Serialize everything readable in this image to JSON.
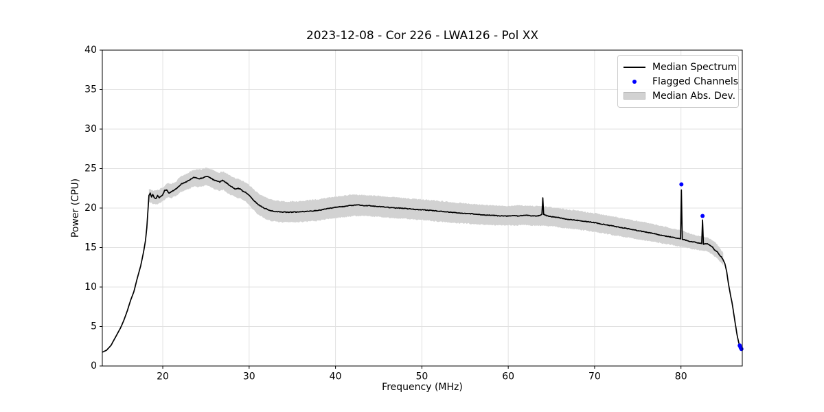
{
  "chart_data": {
    "type": "line",
    "title": "2023-12-08 - Cor 226 - LWA126 - Pol XX",
    "xlabel": "Frequency (MHz)",
    "ylabel": "Power (CPU)",
    "xlim": [
      13.0,
      87.1
    ],
    "ylim": [
      0,
      40
    ],
    "xticks": [
      20,
      30,
      40,
      50,
      60,
      70,
      80
    ],
    "yticks": [
      0,
      5,
      10,
      15,
      20,
      25,
      30,
      35,
      40
    ],
    "grid": true,
    "legend": {
      "position": "upper right",
      "entries": [
        {
          "label": "Median Spectrum",
          "type": "line",
          "color": "#000000"
        },
        {
          "label": "Flagged Channels",
          "type": "point",
          "color": "#0000ff"
        },
        {
          "label": "Median Abs. Dev.",
          "type": "band",
          "color": "#d2d2d2"
        }
      ]
    },
    "colors": {
      "line": "#000000",
      "flagged": "#0000ff",
      "band": "#d2d2d2",
      "grid": "#e1e1e1",
      "spine": "#000000"
    },
    "series": [
      {
        "name": "Median Spectrum",
        "points": [
          [
            13.0,
            1.75
          ],
          [
            13.5,
            2.0
          ],
          [
            14.0,
            2.6
          ],
          [
            14.3,
            3.2
          ],
          [
            14.7,
            4.0
          ],
          [
            15.1,
            4.8
          ],
          [
            15.5,
            5.8
          ],
          [
            15.9,
            7.0
          ],
          [
            16.3,
            8.4
          ],
          [
            16.65,
            9.4
          ],
          [
            17.0,
            10.9
          ],
          [
            17.45,
            12.7
          ],
          [
            17.8,
            14.6
          ],
          [
            18.0,
            15.9
          ],
          [
            18.15,
            17.5
          ],
          [
            18.25,
            19.1
          ],
          [
            18.4,
            21.6
          ],
          [
            18.55,
            21.9
          ],
          [
            18.7,
            21.4
          ],
          [
            18.85,
            21.7
          ],
          [
            19.0,
            21.3
          ],
          [
            19.2,
            21.2
          ],
          [
            19.4,
            21.6
          ],
          [
            19.6,
            21.3
          ],
          [
            19.8,
            21.5
          ],
          [
            20.0,
            21.7
          ],
          [
            20.2,
            22.2
          ],
          [
            20.45,
            22.3
          ],
          [
            20.7,
            21.9
          ],
          [
            20.9,
            22.0
          ],
          [
            21.2,
            22.2
          ],
          [
            21.5,
            22.4
          ],
          [
            21.8,
            22.7
          ],
          [
            22.1,
            23.0
          ],
          [
            22.4,
            23.2
          ],
          [
            22.7,
            23.3
          ],
          [
            23.0,
            23.5
          ],
          [
            23.3,
            23.7
          ],
          [
            23.6,
            23.9
          ],
          [
            23.9,
            23.8
          ],
          [
            24.2,
            23.7
          ],
          [
            24.5,
            23.8
          ],
          [
            24.8,
            23.9
          ],
          [
            25.1,
            24.0
          ],
          [
            25.4,
            23.9
          ],
          [
            25.7,
            23.7
          ],
          [
            26.0,
            23.5
          ],
          [
            26.3,
            23.4
          ],
          [
            26.6,
            23.3
          ],
          [
            26.9,
            23.5
          ],
          [
            27.2,
            23.3
          ],
          [
            27.5,
            23.1
          ],
          [
            27.8,
            22.8
          ],
          [
            28.1,
            22.6
          ],
          [
            28.4,
            22.4
          ],
          [
            28.7,
            22.5
          ],
          [
            29.0,
            22.4
          ],
          [
            29.3,
            22.1
          ],
          [
            29.6,
            22.0
          ],
          [
            29.9,
            21.7
          ],
          [
            30.2,
            21.4
          ],
          [
            30.5,
            21.0
          ],
          [
            30.8,
            20.7
          ],
          [
            31.1,
            20.4
          ],
          [
            31.4,
            20.2
          ],
          [
            31.7,
            20.0
          ],
          [
            32.0,
            19.9
          ],
          [
            32.4,
            19.7
          ],
          [
            32.8,
            19.6
          ],
          [
            33.2,
            19.55
          ],
          [
            33.6,
            19.5
          ],
          [
            34.0,
            19.5
          ],
          [
            34.5,
            19.45
          ],
          [
            35.0,
            19.5
          ],
          [
            35.5,
            19.5
          ],
          [
            36.0,
            19.55
          ],
          [
            36.5,
            19.55
          ],
          [
            37.0,
            19.6
          ],
          [
            37.5,
            19.65
          ],
          [
            38.0,
            19.7
          ],
          [
            38.5,
            19.8
          ],
          [
            39.0,
            19.9
          ],
          [
            39.5,
            20.0
          ],
          [
            40.0,
            20.1
          ],
          [
            40.5,
            20.15
          ],
          [
            41.0,
            20.2
          ],
          [
            41.5,
            20.3
          ],
          [
            42.0,
            20.35
          ],
          [
            42.5,
            20.4
          ],
          [
            43.0,
            20.35
          ],
          [
            43.5,
            20.3
          ],
          [
            44.0,
            20.3
          ],
          [
            44.5,
            20.25
          ],
          [
            45.0,
            20.2
          ],
          [
            45.5,
            20.15
          ],
          [
            46.0,
            20.1
          ],
          [
            46.5,
            20.05
          ],
          [
            47.0,
            20.0
          ],
          [
            47.5,
            20.0
          ],
          [
            48.0,
            19.95
          ],
          [
            48.5,
            19.9
          ],
          [
            49.0,
            19.85
          ],
          [
            49.5,
            19.8
          ],
          [
            50.0,
            19.8
          ],
          [
            50.5,
            19.75
          ],
          [
            51.0,
            19.7
          ],
          [
            51.5,
            19.65
          ],
          [
            52.0,
            19.6
          ],
          [
            52.5,
            19.55
          ],
          [
            53.0,
            19.5
          ],
          [
            53.5,
            19.45
          ],
          [
            54.0,
            19.4
          ],
          [
            54.5,
            19.35
          ],
          [
            55.0,
            19.3
          ],
          [
            55.5,
            19.3
          ],
          [
            56.0,
            19.25
          ],
          [
            56.5,
            19.2
          ],
          [
            57.0,
            19.15
          ],
          [
            57.5,
            19.1
          ],
          [
            58.0,
            19.1
          ],
          [
            58.5,
            19.05
          ],
          [
            59.0,
            19.0
          ],
          [
            59.5,
            19.0
          ],
          [
            60.0,
            19.0
          ],
          [
            60.5,
            19.05
          ],
          [
            61.0,
            19.0
          ],
          [
            61.5,
            19.05
          ],
          [
            62.0,
            19.1
          ],
          [
            62.5,
            19.05
          ],
          [
            63.0,
            19.0
          ],
          [
            63.5,
            19.0
          ],
          [
            63.9,
            19.2
          ],
          [
            64.0,
            21.3
          ],
          [
            64.1,
            19.2
          ],
          [
            64.5,
            19.0
          ],
          [
            65.0,
            18.9
          ],
          [
            65.5,
            18.85
          ],
          [
            66.0,
            18.75
          ],
          [
            66.5,
            18.65
          ],
          [
            67.0,
            18.55
          ],
          [
            67.5,
            18.5
          ],
          [
            68.0,
            18.45
          ],
          [
            68.5,
            18.35
          ],
          [
            69.0,
            18.3
          ],
          [
            69.5,
            18.25
          ],
          [
            70.0,
            18.15
          ],
          [
            70.5,
            18.05
          ],
          [
            71.0,
            17.95
          ],
          [
            71.5,
            17.85
          ],
          [
            72.0,
            17.75
          ],
          [
            72.5,
            17.65
          ],
          [
            73.0,
            17.55
          ],
          [
            73.5,
            17.45
          ],
          [
            74.0,
            17.35
          ],
          [
            74.5,
            17.25
          ],
          [
            75.0,
            17.15
          ],
          [
            75.5,
            17.05
          ],
          [
            76.0,
            16.95
          ],
          [
            76.5,
            16.85
          ],
          [
            77.0,
            16.75
          ],
          [
            77.5,
            16.6
          ],
          [
            78.0,
            16.5
          ],
          [
            78.5,
            16.4
          ],
          [
            79.0,
            16.3
          ],
          [
            79.5,
            16.2
          ],
          [
            79.95,
            16.1
          ],
          [
            80.05,
            22.3
          ],
          [
            80.15,
            16.05
          ],
          [
            80.5,
            15.95
          ],
          [
            81.0,
            15.8
          ],
          [
            81.5,
            15.7
          ],
          [
            82.0,
            15.6
          ],
          [
            82.4,
            15.5
          ],
          [
            82.5,
            18.5
          ],
          [
            82.6,
            15.45
          ],
          [
            83.0,
            15.5
          ],
          [
            83.3,
            15.3
          ],
          [
            83.6,
            15.1
          ],
          [
            83.9,
            14.7
          ],
          [
            84.2,
            14.5
          ],
          [
            84.5,
            14.0
          ],
          [
            84.7,
            13.8
          ],
          [
            84.9,
            13.4
          ],
          [
            85.1,
            12.9
          ],
          [
            85.3,
            11.9
          ],
          [
            85.5,
            10.4
          ],
          [
            85.7,
            9.2
          ],
          [
            85.9,
            8.1
          ],
          [
            86.1,
            6.7
          ],
          [
            86.3,
            5.3
          ],
          [
            86.5,
            3.9
          ],
          [
            86.7,
            2.9
          ],
          [
            86.9,
            2.3
          ]
        ]
      }
    ],
    "band": {
      "name": "Median Abs. Dev.",
      "points": [
        [
          18.4,
          20.8,
          22.4
        ],
        [
          19.0,
          20.5,
          22.2
        ],
        [
          19.5,
          20.5,
          22.3
        ],
        [
          20.0,
          20.9,
          22.6
        ],
        [
          20.5,
          21.3,
          23.1
        ],
        [
          21.0,
          21.3,
          23.1
        ],
        [
          21.5,
          21.5,
          23.3
        ],
        [
          22.0,
          22.0,
          24.0
        ],
        [
          22.5,
          22.2,
          24.2
        ],
        [
          23.0,
          22.4,
          24.5
        ],
        [
          23.5,
          22.7,
          24.8
        ],
        [
          24.0,
          22.7,
          24.9
        ],
        [
          24.5,
          22.7,
          24.9
        ],
        [
          25.0,
          22.9,
          25.1
        ],
        [
          25.5,
          22.7,
          25.0
        ],
        [
          26.0,
          22.4,
          24.7
        ],
        [
          26.5,
          22.2,
          24.5
        ],
        [
          27.0,
          22.3,
          24.6
        ],
        [
          27.5,
          21.9,
          24.3
        ],
        [
          28.0,
          21.6,
          24.0
        ],
        [
          28.5,
          21.3,
          23.7
        ],
        [
          29.0,
          21.3,
          23.6
        ],
        [
          29.5,
          20.9,
          23.3
        ],
        [
          30.0,
          20.4,
          22.9
        ],
        [
          30.5,
          19.8,
          22.4
        ],
        [
          31.0,
          19.2,
          21.9
        ],
        [
          31.5,
          18.9,
          21.6
        ],
        [
          32.0,
          18.6,
          21.3
        ],
        [
          32.5,
          18.4,
          21.1
        ],
        [
          33.0,
          18.3,
          21.0
        ],
        [
          33.5,
          18.2,
          20.9
        ],
        [
          34.0,
          18.2,
          20.85
        ],
        [
          34.5,
          18.2,
          20.8
        ],
        [
          35.0,
          18.2,
          20.85
        ],
        [
          35.5,
          18.2,
          20.85
        ],
        [
          36.0,
          18.25,
          20.9
        ],
        [
          37.0,
          18.3,
          21.0
        ],
        [
          38.0,
          18.4,
          21.1
        ],
        [
          39.0,
          18.6,
          21.3
        ],
        [
          40.0,
          18.75,
          21.45
        ],
        [
          41.0,
          18.85,
          21.55
        ],
        [
          42.0,
          19.0,
          21.7
        ],
        [
          43.0,
          19.0,
          21.65
        ],
        [
          44.0,
          18.95,
          21.6
        ],
        [
          45.0,
          18.9,
          21.55
        ],
        [
          46.0,
          18.8,
          21.45
        ],
        [
          47.0,
          18.7,
          21.35
        ],
        [
          48.0,
          18.65,
          21.25
        ],
        [
          49.0,
          18.55,
          21.15
        ],
        [
          50.0,
          18.5,
          21.1
        ],
        [
          51.0,
          18.4,
          21.0
        ],
        [
          52.0,
          18.3,
          20.9
        ],
        [
          53.0,
          18.2,
          20.8
        ],
        [
          54.0,
          18.1,
          20.7
        ],
        [
          55.0,
          18.05,
          20.6
        ],
        [
          56.0,
          18.0,
          20.5
        ],
        [
          57.0,
          17.9,
          20.4
        ],
        [
          58.0,
          17.85,
          20.35
        ],
        [
          59.0,
          17.8,
          20.3
        ],
        [
          60.0,
          17.8,
          20.25
        ],
        [
          61.0,
          17.8,
          20.3
        ],
        [
          62.0,
          17.85,
          20.35
        ],
        [
          63.0,
          17.8,
          20.25
        ],
        [
          64.0,
          17.75,
          20.2
        ],
        [
          65.0,
          17.7,
          20.1
        ],
        [
          66.0,
          17.55,
          19.95
        ],
        [
          67.0,
          17.4,
          19.8
        ],
        [
          68.0,
          17.3,
          19.7
        ],
        [
          69.0,
          17.15,
          19.5
        ],
        [
          70.0,
          17.0,
          19.35
        ],
        [
          71.0,
          16.8,
          19.15
        ],
        [
          72.0,
          16.6,
          18.95
        ],
        [
          73.0,
          16.4,
          18.75
        ],
        [
          74.0,
          16.25,
          18.55
        ],
        [
          75.0,
          16.05,
          18.35
        ],
        [
          76.0,
          15.9,
          18.15
        ],
        [
          77.0,
          15.7,
          17.9
        ],
        [
          78.0,
          15.5,
          17.7
        ],
        [
          79.0,
          15.3,
          17.4
        ],
        [
          80.0,
          15.1,
          17.2
        ],
        [
          80.5,
          15.0,
          17.0
        ],
        [
          81.0,
          14.9,
          16.8
        ],
        [
          81.5,
          14.8,
          16.6
        ],
        [
          82.0,
          14.7,
          16.5
        ],
        [
          82.5,
          14.6,
          16.4
        ],
        [
          83.0,
          14.5,
          16.3
        ],
        [
          83.5,
          14.2,
          16.0
        ],
        [
          84.0,
          13.8,
          15.6
        ],
        [
          84.4,
          13.4,
          15.1
        ],
        [
          84.9,
          12.8,
          14.3
        ]
      ]
    },
    "flagged_channels": [
      [
        80.05,
        23.0
      ],
      [
        82.5,
        19.0
      ],
      [
        86.8,
        2.6
      ],
      [
        86.9,
        2.35
      ],
      [
        87.0,
        2.15
      ]
    ]
  }
}
